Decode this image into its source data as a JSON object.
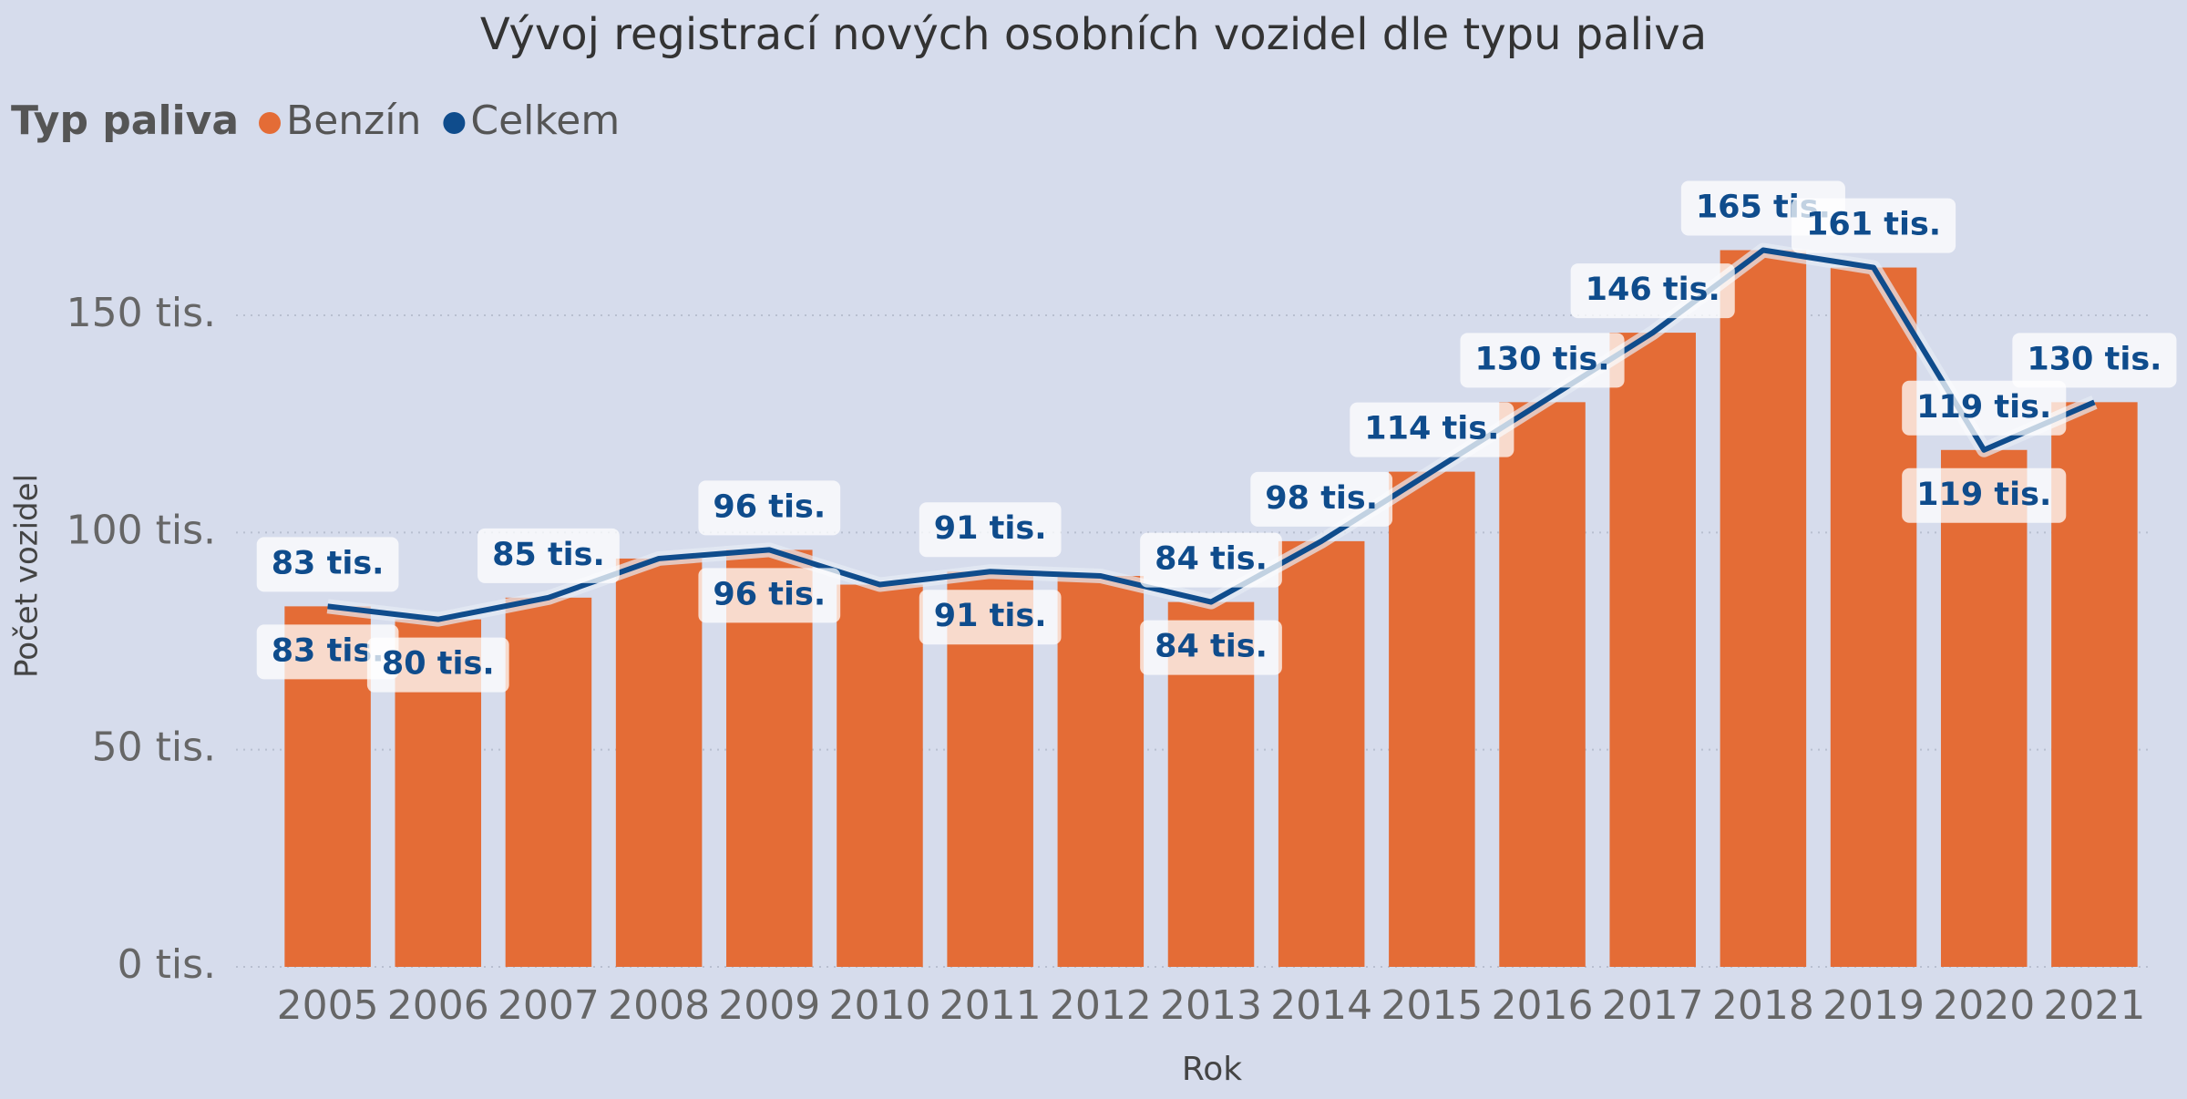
{
  "chart_data": {
    "type": "bar",
    "title": "Vývoj registrací nových osobních vozidel dle typu paliva",
    "legend_title": "Typ paliva",
    "x_label": "Rok",
    "y_label": "Počet vozidel",
    "categories": [
      "2005",
      "2006",
      "2007",
      "2008",
      "2009",
      "2010",
      "2011",
      "2012",
      "2013",
      "2014",
      "2015",
      "2016",
      "2017",
      "2018",
      "2019",
      "2020",
      "2021"
    ],
    "series": [
      {
        "name": "Benzín",
        "type": "bar",
        "color": "#e46c36",
        "values": [
          83,
          80,
          85,
          94,
          96,
          88,
          91,
          90,
          84,
          98,
          114,
          130,
          146,
          165,
          161,
          119,
          130
        ],
        "value_labels": [
          "83 tis.",
          "80 tis.",
          null,
          null,
          "96 tis.",
          null,
          "91 tis.",
          null,
          "84 tis.",
          null,
          null,
          null,
          null,
          null,
          null,
          "119 tis.",
          null
        ]
      },
      {
        "name": "Celkem",
        "type": "line",
        "color": "#0f4c8c",
        "values": [
          83,
          80,
          85,
          94,
          96,
          88,
          91,
          90,
          84,
          98,
          114,
          130,
          146,
          165,
          161,
          119,
          130
        ],
        "value_labels": [
          "83 tis.",
          null,
          "85 tis.",
          null,
          "96 tis.",
          null,
          "91 tis.",
          null,
          "84 tis.",
          "98 tis.",
          "114 tis.",
          "130 tis.",
          "146 tis.",
          "165 tis.",
          "161 tis.",
          "119 tis.",
          "130 tis."
        ]
      }
    ],
    "ylim": [
      0,
      180
    ],
    "yticks": [
      {
        "value": 0,
        "label": "0 tis."
      },
      {
        "value": 50,
        "label": "50 tis."
      },
      {
        "value": 100,
        "label": "100 tis."
      },
      {
        "value": 150,
        "label": "150 tis."
      }
    ],
    "grid": true
  }
}
